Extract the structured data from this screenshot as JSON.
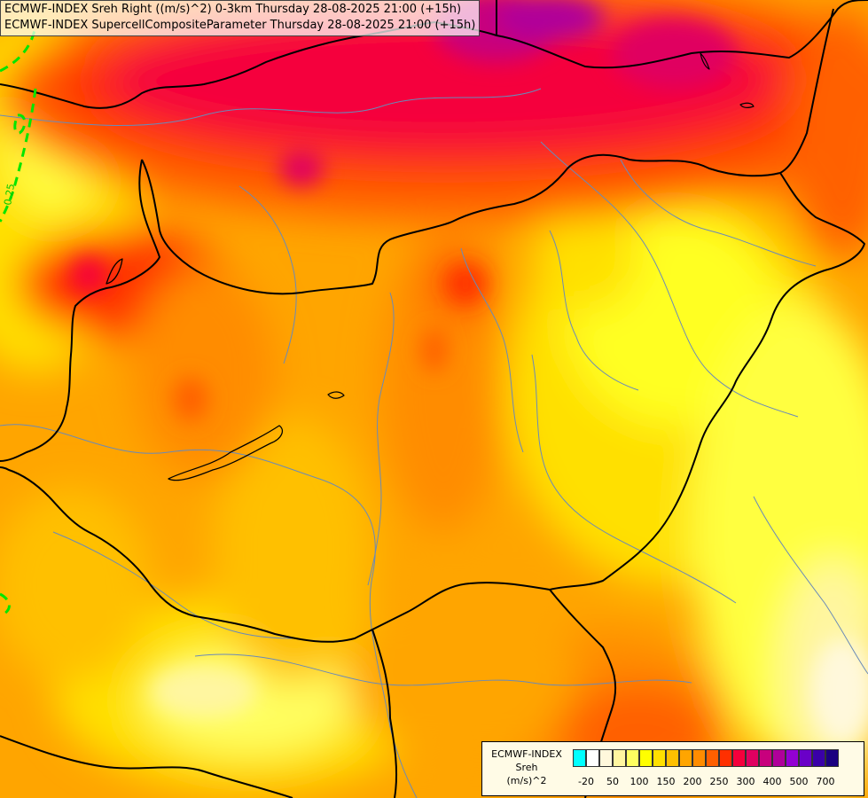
{
  "header": {
    "line1": "ECMWF-INDEX Sreh Right ((m/s)^2) 0-3km Thursday 28-08-2025 21:00 (+15h)",
    "line2": "ECMWF-INDEX SupercellCompositeParameter Thursday 28-08-2025 21:00 (+15h)"
  },
  "contour_label": "0.25",
  "legend": {
    "title": "ECMWF-INDEX",
    "variable": "Sreh",
    "unit": "(m/s)^2",
    "ticks": [
      "-20",
      "50",
      "100",
      "150",
      "200",
      "250",
      "300",
      "400",
      "500",
      "700"
    ],
    "colors": [
      "#00ffff",
      "#ffffff",
      "#fff8dc",
      "#fff6a0",
      "#ffff60",
      "#ffff00",
      "#ffe000",
      "#ffc000",
      "#ffa500",
      "#ff8c00",
      "#ff6000",
      "#ff3000",
      "#f5003c",
      "#e00060",
      "#c8007d",
      "#b0009a",
      "#9400d3",
      "#6a00c8",
      "#3a00a8",
      "#1a0080"
    ]
  },
  "colors": {
    "border": "#000000",
    "river": "#6a8ab8",
    "contour": "#00e600"
  }
}
